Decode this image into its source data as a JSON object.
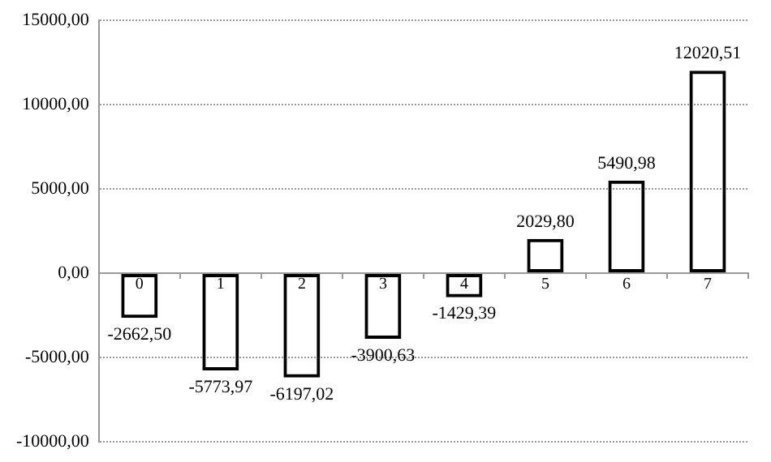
{
  "chart_data": {
    "type": "bar",
    "categories": [
      "0",
      "1",
      "2",
      "3",
      "4",
      "5",
      "6",
      "7"
    ],
    "values": [
      -2662.5,
      -5773.97,
      -6197.02,
      -3900.63,
      -1429.39,
      2029.8,
      5490.98,
      12020.51
    ],
    "value_labels": [
      "-2662,50",
      "-5773,97",
      "-6197,02",
      "-3900,63",
      "-1429,39",
      "2029,80",
      "5490,98",
      "12020,51"
    ],
    "color": "#000000",
    "ylim": [
      -10000,
      15000
    ],
    "yticks": [
      {
        "value": -10000,
        "label": "-10000,00"
      },
      {
        "value": -5000,
        "label": "-5000,00"
      },
      {
        "value": 0,
        "label": "0,00"
      },
      {
        "value": 5000,
        "label": "5000,00"
      },
      {
        "value": 10000,
        "label": "10000,00"
      },
      {
        "value": 15000,
        "label": "15000,00"
      }
    ],
    "grid": "y",
    "legend": false
  }
}
